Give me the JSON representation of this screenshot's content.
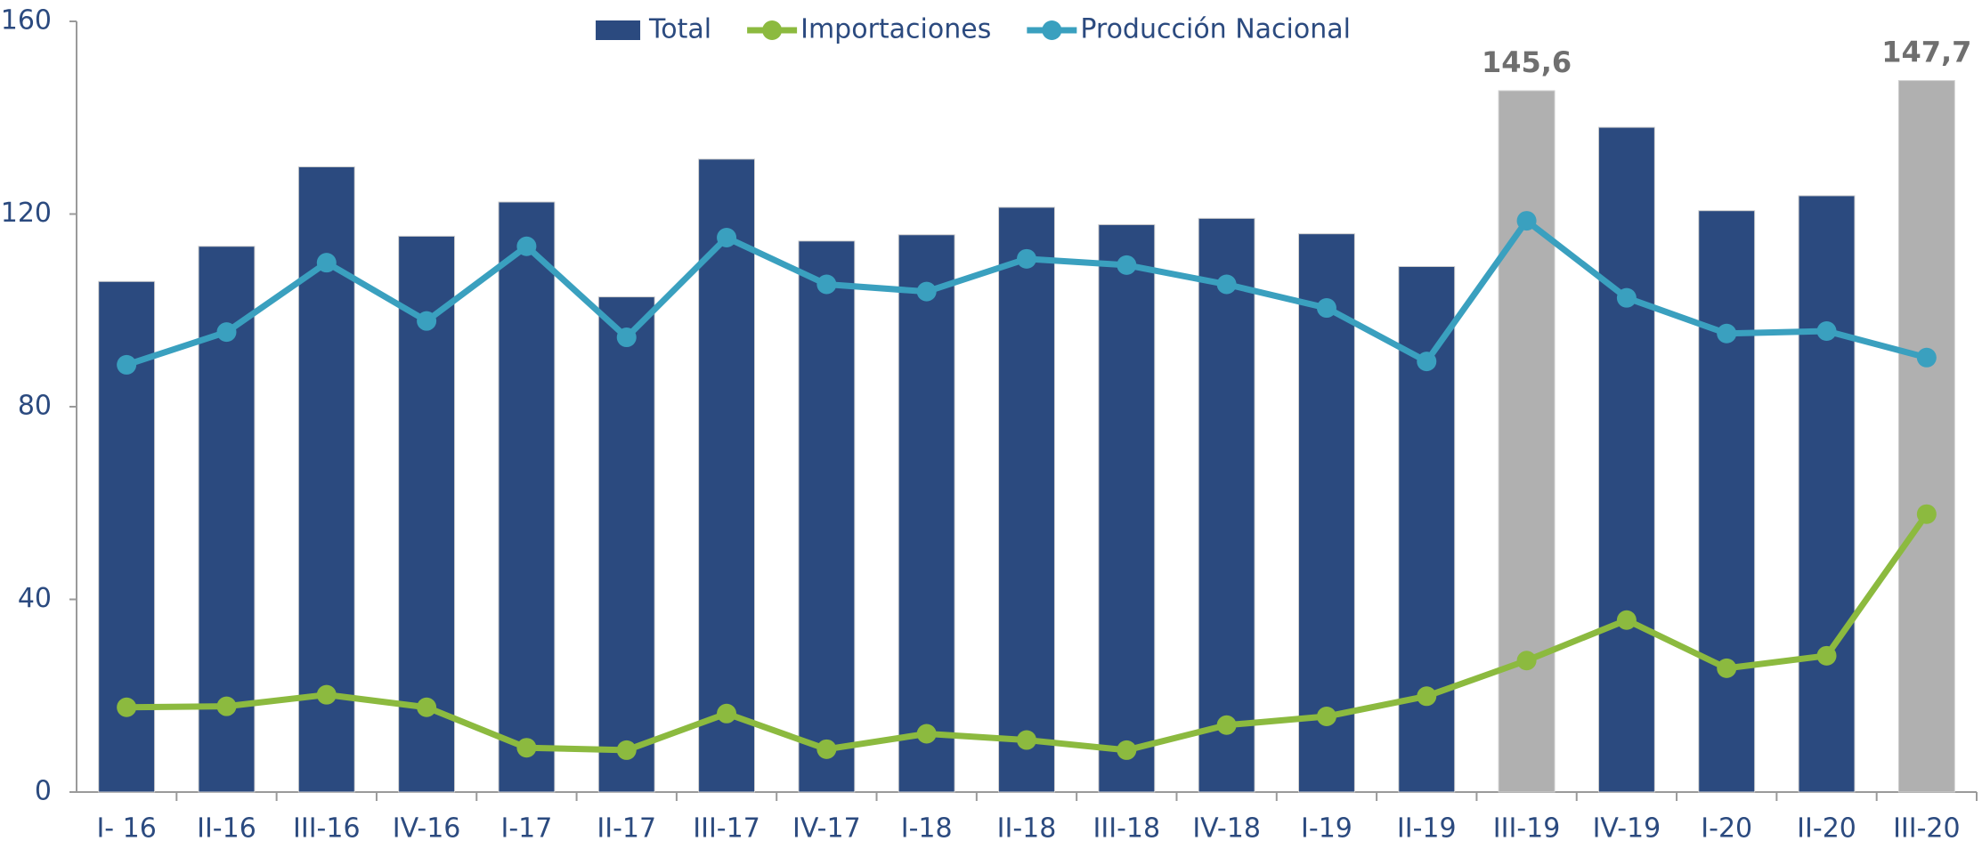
{
  "chart_data": {
    "type": "bar_line",
    "categories": [
      "I- 16",
      "II-16",
      "III-16",
      "IV-16",
      "I-17",
      "II-17",
      "III-17",
      "IV-17",
      "I-18",
      "II-18",
      "III-18",
      "IV-18",
      "I-19",
      "II-19",
      "III-19",
      "IV-19",
      "I-20",
      "II-20",
      "III-20"
    ],
    "series": [
      {
        "name": "Total",
        "type": "bar",
        "color": "#2b4a7f",
        "colors": [
          "#2b4a7f",
          "#2b4a7f",
          "#2b4a7f",
          "#2b4a7f",
          "#2b4a7f",
          "#2b4a7f",
          "#2b4a7f",
          "#2b4a7f",
          "#2b4a7f",
          "#2b4a7f",
          "#2b4a7f",
          "#2b4a7f",
          "#2b4a7f",
          "#2b4a7f",
          "#b0b0b0",
          "#2b4a7f",
          "#2b4a7f",
          "#2b4a7f",
          "#b0b0b0"
        ],
        "values": [
          106.0,
          113.3,
          129.8,
          115.4,
          122.5,
          102.8,
          131.4,
          114.4,
          115.7,
          121.4,
          117.8,
          119.1,
          115.9,
          109.1,
          145.6,
          138.0,
          120.7,
          123.8,
          147.7
        ],
        "value_labels": [
          null,
          null,
          null,
          null,
          null,
          null,
          null,
          null,
          null,
          null,
          null,
          null,
          null,
          null,
          "145,6",
          null,
          null,
          null,
          "147,7"
        ]
      },
      {
        "name": "Importaciones",
        "type": "line",
        "color": "#8cba3f",
        "values": [
          17.6,
          17.8,
          20.2,
          17.6,
          9.2,
          8.7,
          16.3,
          8.9,
          12.1,
          10.8,
          8.7,
          13.9,
          15.7,
          19.9,
          27.3,
          35.7,
          25.7,
          28.3,
          57.7
        ]
      },
      {
        "name": "Producción Nacional",
        "type": "line",
        "color": "#3aa0bf",
        "values": [
          88.7,
          95.5,
          109.9,
          97.8,
          113.3,
          94.4,
          115.1,
          105.4,
          103.9,
          110.7,
          109.4,
          105.4,
          100.5,
          89.4,
          118.6,
          102.6,
          95.2,
          95.7,
          90.2
        ]
      }
    ],
    "ylim": [
      0,
      160
    ],
    "yticks": [
      0,
      40,
      80,
      120,
      160
    ],
    "grid": false,
    "legend": "top"
  }
}
